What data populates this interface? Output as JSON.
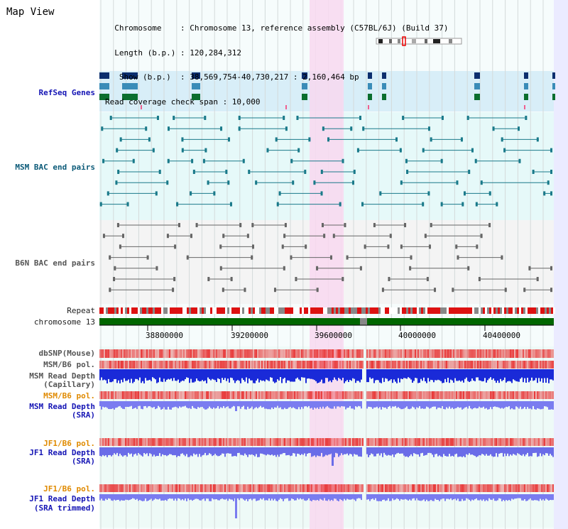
{
  "title": "Map View",
  "info": {
    "lines": [
      "  Chromosome    : Chromosome 13, reference assembly (C57BL/6J) (Build 37)",
      "  Length (b.p.) : 120,284,312",
      "   Show (b.p.)  : 38,569,754-40,730,217 : 2,160,464 bp",
      "Read coverage check span : 10,000"
    ]
  },
  "tracks": {
    "refseq": "RefSeq Genes",
    "msm_bac": "MSM BAC end pairs",
    "b6n_bac": "B6N BAC end pairs",
    "repeat": "Repeat",
    "chromosome": "chromosome 13",
    "dbsnp": "dbSNP(Mouse)",
    "msm_b6_pol": "MSM/B6 pol.",
    "msm_read_depth_cap_1": "MSM Read Depth",
    "msm_read_depth_cap_2": "(Capillary)",
    "msm_b6_pol2": "MSM/B6 pol.",
    "msm_read_depth_sra_1": "MSM Read Depth",
    "msm_read_depth_sra_2": "(SRA)",
    "jf1_b6_pol": "JF1/B6 pol.",
    "jf1_read_depth_sra_1": "JF1 Read Depth",
    "jf1_read_depth_sra_2": "(SRA)",
    "jf1_b6_pol2": "JF1/B6 pol.",
    "jf1_read_depth_tr_1": "JF1 Read Depth",
    "jf1_read_depth_tr_2": "(SRA trimmed)"
  },
  "axis": {
    "ticks": [
      "38800000",
      "39200000",
      "39600000",
      "40000000",
      "40400000"
    ]
  },
  "colors": {
    "highlight": "#f8d8f0",
    "refseq_bg": "#d8eef8",
    "bac_bg": "#e6f9f9",
    "chrom_bar": "#006600",
    "snp_red": "#e83030",
    "depth_blue": "#1a2ad8"
  }
}
